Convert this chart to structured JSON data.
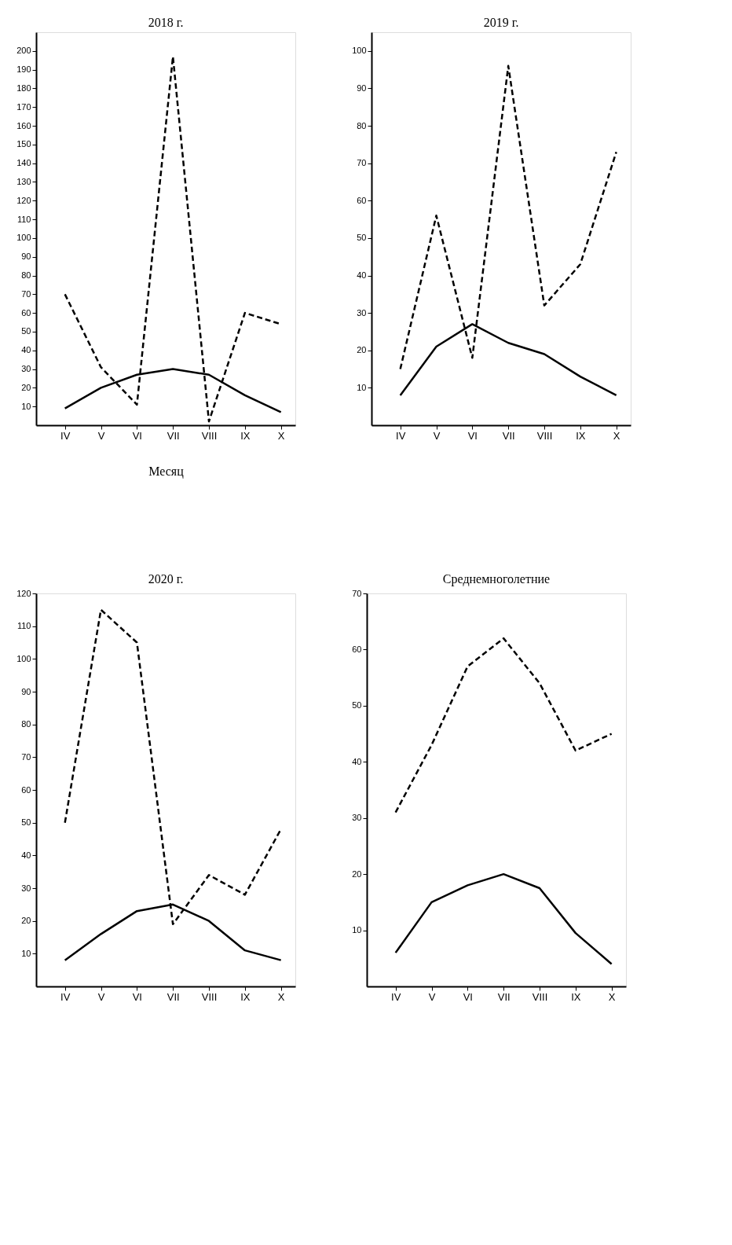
{
  "chart_data": [
    {
      "type": "line",
      "title": "2018 г.",
      "xlabel": "Месяц",
      "categories": [
        "IV",
        "V",
        "VI",
        "VII",
        "VIII",
        "IX",
        "X"
      ],
      "series": [
        {
          "color": "#000000",
          "line_style": "dashed",
          "values": [
            70,
            31,
            11,
            197,
            2,
            60,
            54
          ]
        },
        {
          "color": "#000000",
          "line_style": "solid",
          "values": [
            9,
            20,
            27,
            30,
            27,
            16,
            7
          ]
        }
      ],
      "ylim": [
        0,
        210
      ],
      "yticks": [
        10,
        20,
        30,
        40,
        50,
        60,
        70,
        80,
        90,
        100,
        110,
        120,
        130,
        140,
        150,
        160,
        170,
        180,
        190,
        200
      ],
      "grid": false,
      "legend": false
    },
    {
      "type": "line",
      "title": "2019 г.",
      "categories": [
        "IV",
        "V",
        "VI",
        "VII",
        "VIII",
        "IX",
        "X"
      ],
      "series": [
        {
          "color": "#000000",
          "line_style": "dashed",
          "values": [
            15,
            56,
            18,
            96,
            32,
            43,
            73
          ]
        },
        {
          "color": "#000000",
          "line_style": "solid",
          "values": [
            8,
            21,
            27,
            22,
            19,
            13,
            8
          ]
        }
      ],
      "ylim": [
        0,
        105
      ],
      "yticks": [
        10,
        20,
        30,
        40,
        50,
        60,
        70,
        80,
        90,
        100
      ],
      "grid": false,
      "legend": false
    },
    {
      "type": "line",
      "title": "2020 г.",
      "categories": [
        "IV",
        "V",
        "VI",
        "VII",
        "VIII",
        "IX",
        "X"
      ],
      "series": [
        {
          "color": "#000000",
          "line_style": "dashed",
          "values": [
            50,
            115,
            105,
            19,
            34,
            28,
            48
          ]
        },
        {
          "color": "#000000",
          "line_style": "solid",
          "values": [
            8,
            16,
            23,
            25,
            20,
            11,
            8
          ]
        }
      ],
      "ylim": [
        0,
        120
      ],
      "yticks": [
        10,
        20,
        30,
        40,
        50,
        60,
        70,
        80,
        90,
        100,
        110,
        120
      ],
      "grid": false,
      "legend": false
    },
    {
      "type": "line",
      "title": "Среднемноголетние",
      "categories": [
        "IV",
        "V",
        "VI",
        "VII",
        "VIII",
        "IX",
        "X"
      ],
      "series": [
        {
          "color": "#000000",
          "line_style": "dashed",
          "values": [
            31,
            43,
            57,
            62,
            54,
            42,
            45
          ]
        },
        {
          "color": "#000000",
          "line_style": "solid",
          "values": [
            6,
            15,
            18,
            20,
            17.5,
            9.5,
            4
          ]
        }
      ],
      "ylim": [
        0,
        70
      ],
      "yticks": [
        10,
        20,
        30,
        40,
        50,
        60,
        70
      ],
      "grid": false,
      "legend": false
    }
  ]
}
